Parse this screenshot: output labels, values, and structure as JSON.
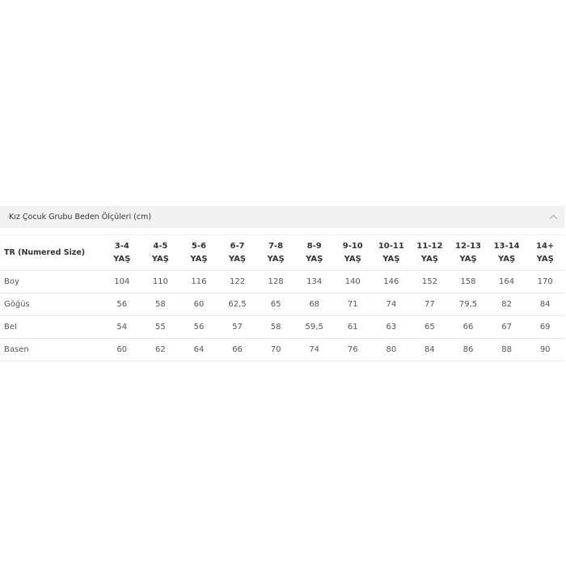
{
  "section": {
    "title": "Kız Çocuk Grubu Beden Ölçüleri (cm)",
    "toggle_icon": "chevron-up-icon"
  },
  "table": {
    "corner_header": "TR (Numered Size)",
    "columns": [
      {
        "range": "3-4",
        "unit": "YAŞ"
      },
      {
        "range": "4-5",
        "unit": "YAŞ"
      },
      {
        "range": "5-6",
        "unit": "YAŞ"
      },
      {
        "range": "6-7",
        "unit": "YAŞ"
      },
      {
        "range": "7-8",
        "unit": "YAŞ"
      },
      {
        "range": "8-9",
        "unit": "YAŞ"
      },
      {
        "range": "9-10",
        "unit": "YAŞ"
      },
      {
        "range": "10-11",
        "unit": "YAŞ"
      },
      {
        "range": "11-12",
        "unit": "YAŞ"
      },
      {
        "range": "12-13",
        "unit": "YAŞ"
      },
      {
        "range": "13-14",
        "unit": "YAŞ"
      },
      {
        "range": "14+",
        "unit": "YAŞ"
      }
    ],
    "rows": [
      {
        "label": "Boy",
        "values": [
          "104",
          "110",
          "116",
          "122",
          "128",
          "134",
          "140",
          "146",
          "152",
          "158",
          "164",
          "170"
        ]
      },
      {
        "label": "Göğüs",
        "values": [
          "56",
          "58",
          "60",
          "62,5",
          "65",
          "68",
          "71",
          "74",
          "77",
          "79,5",
          "82",
          "84"
        ]
      },
      {
        "label": "Bel",
        "values": [
          "54",
          "55",
          "56",
          "57",
          "58",
          "59,5",
          "61",
          "63",
          "65",
          "66",
          "67",
          "69"
        ]
      },
      {
        "label": "Basen",
        "values": [
          "60",
          "62",
          "64",
          "66",
          "70",
          "74",
          "76",
          "80",
          "84",
          "86",
          "88",
          "90"
        ]
      }
    ]
  }
}
